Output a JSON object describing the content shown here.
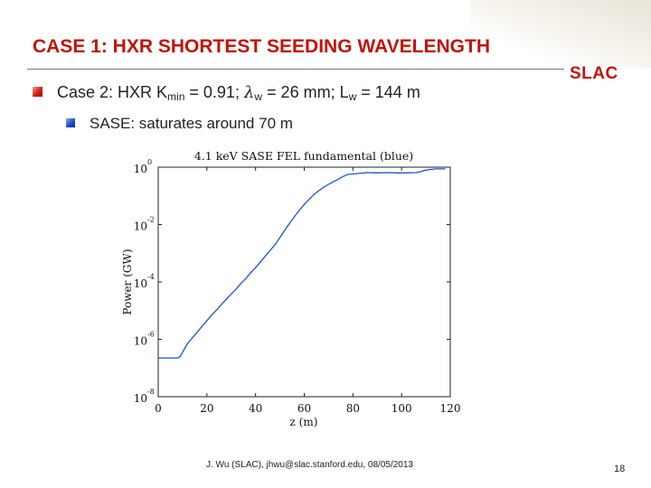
{
  "slide": {
    "title": "CASE 1: HXR SHORTEST SEEDING WAVELENGTH",
    "logo": "SLAC",
    "bullet1": {
      "text_a": "Case 2: HXR K",
      "sub_a": "min",
      "text_b": " = 0.91; ",
      "lambda": "λ",
      "sub_b": "w",
      "text_c": " = 26 mm; L",
      "sub_c": "w",
      "text_d": " = 144 m"
    },
    "bullet2": "SASE: saturates around 70 m",
    "footer": "J. Wu (SLAC), jhwu@slac.stanford.edu, 08/05/2013",
    "page_number": "18"
  },
  "chart_data": {
    "type": "line",
    "title": "4.1 keV SASE FEL fundamental (blue)",
    "xlabel": "z (m)",
    "ylabel": "Power (GW)",
    "xlim": [
      0,
      120
    ],
    "ylim_log10": [
      -8,
      0
    ],
    "y_scale": "log",
    "x_ticks": [
      "0",
      "20",
      "40",
      "60",
      "80",
      "100",
      "120"
    ],
    "y_ticks": [
      {
        "base": "10",
        "exp": "0",
        "log": 0
      },
      {
        "base": "10",
        "exp": "-2",
        "log": -2
      },
      {
        "base": "10",
        "exp": "-4",
        "log": -4
      },
      {
        "base": "10",
        "exp": "-6",
        "log": -6
      },
      {
        "base": "10",
        "exp": "-8",
        "log": -8
      }
    ],
    "grid": false,
    "series": [
      {
        "color": "#1f4fd6",
        "points": [
          [
            0,
            -6.65
          ],
          [
            2,
            -6.65
          ],
          [
            4,
            -6.65
          ],
          [
            6,
            -6.65
          ],
          [
            8,
            -6.65
          ],
          [
            9,
            -6.6
          ],
          [
            10,
            -6.45
          ],
          [
            11,
            -6.3
          ],
          [
            12,
            -6.15
          ],
          [
            14,
            -5.95
          ],
          [
            16,
            -5.75
          ],
          [
            18,
            -5.55
          ],
          [
            20,
            -5.35
          ],
          [
            22,
            -5.15
          ],
          [
            24,
            -4.98
          ],
          [
            26,
            -4.78
          ],
          [
            28,
            -4.6
          ],
          [
            30,
            -4.42
          ],
          [
            32,
            -4.25
          ],
          [
            34,
            -4.05
          ],
          [
            36,
            -3.88
          ],
          [
            38,
            -3.68
          ],
          [
            40,
            -3.5
          ],
          [
            42,
            -3.3
          ],
          [
            44,
            -3.1
          ],
          [
            46,
            -2.9
          ],
          [
            48,
            -2.7
          ],
          [
            50,
            -2.45
          ],
          [
            52,
            -2.2
          ],
          [
            54,
            -1.95
          ],
          [
            56,
            -1.72
          ],
          [
            58,
            -1.5
          ],
          [
            60,
            -1.3
          ],
          [
            62,
            -1.12
          ],
          [
            64,
            -0.95
          ],
          [
            66,
            -0.82
          ],
          [
            68,
            -0.7
          ],
          [
            70,
            -0.6
          ],
          [
            72,
            -0.5
          ],
          [
            74,
            -0.42
          ],
          [
            76,
            -0.32
          ],
          [
            78,
            -0.25
          ],
          [
            80,
            -0.24
          ],
          [
            82,
            -0.22
          ],
          [
            86,
            -0.19
          ],
          [
            90,
            -0.2
          ],
          [
            94,
            -0.19
          ],
          [
            98,
            -0.2
          ],
          [
            102,
            -0.2
          ],
          [
            106,
            -0.19
          ],
          [
            108,
            -0.15
          ],
          [
            110,
            -0.1
          ],
          [
            112,
            -0.08
          ],
          [
            114,
            -0.06
          ],
          [
            116,
            -0.06
          ],
          [
            118,
            -0.06
          ]
        ]
      }
    ]
  }
}
